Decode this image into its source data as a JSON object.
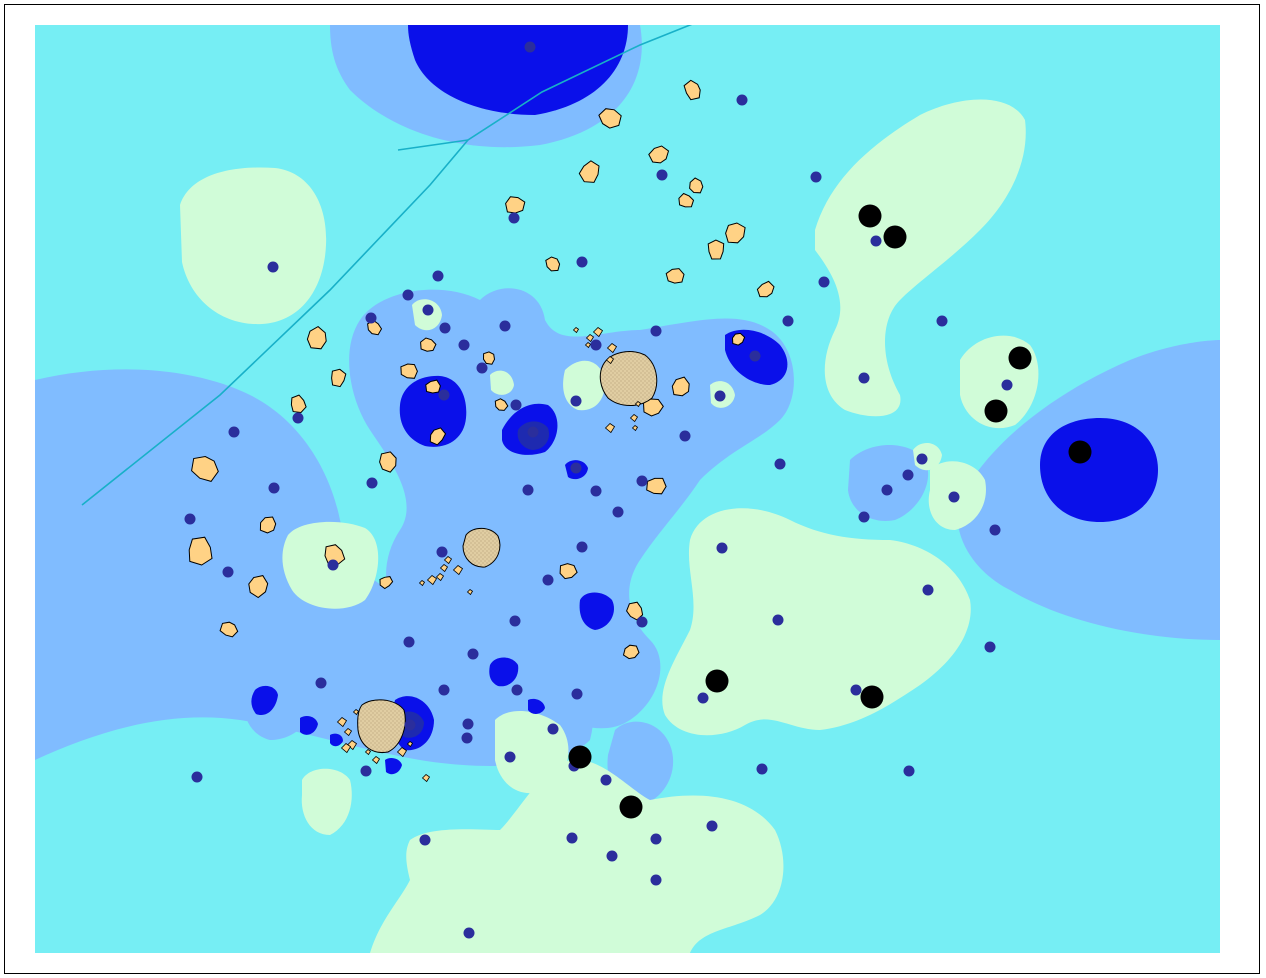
{
  "map": {
    "colors": {
      "background_zone": "#76EEF4",
      "light_zone": "#D0FCD8",
      "medium_zone": "#80BCFF",
      "dark_zone": "#0A10EA",
      "darkest_zone": "#1E2AB0",
      "sample_point": "#2B2E9C",
      "large_marker": "#000000",
      "yellow_feature": "#FFD285",
      "tan_feature": "#E0CDA2",
      "line_feature": "#18B0C8",
      "frame_border": "#000000"
    },
    "layers": [
      {
        "name": "contour-zones"
      },
      {
        "name": "line-feature"
      },
      {
        "name": "polygon-features"
      },
      {
        "name": "sample-points"
      },
      {
        "name": "large-markers"
      }
    ]
  }
}
